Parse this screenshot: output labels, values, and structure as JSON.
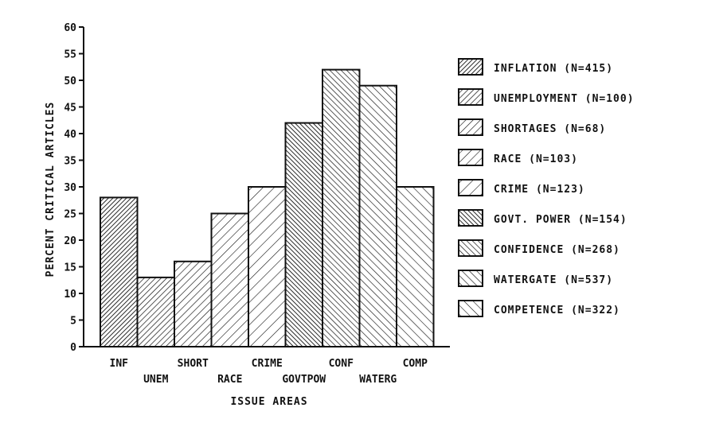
{
  "chart_data": {
    "type": "bar",
    "title": "",
    "xlabel": "ISSUE AREAS",
    "ylabel": "PERCENT CRITICAL ARTICLES",
    "ylim": [
      0,
      60
    ],
    "yticks": [
      0,
      5,
      10,
      15,
      20,
      25,
      30,
      35,
      40,
      45,
      50,
      55,
      60
    ],
    "grid": false,
    "legend_position": "right",
    "categories": [
      "INF",
      "UNEM",
      "SHORT",
      "RACE",
      "CRIME",
      "GOVTPOW",
      "CONF",
      "WATERG",
      "COMP"
    ],
    "values": [
      28,
      13,
      16,
      25,
      30,
      42,
      52,
      49,
      30
    ],
    "legend": [
      {
        "label": "INFLATION (N=415)",
        "pattern": "dense-up"
      },
      {
        "label": "UNEMPLOYMENT (N=100)",
        "pattern": "medium-up"
      },
      {
        "label": "SHORTAGES (N=68)",
        "pattern": "sparse-up"
      },
      {
        "label": "RACE (N=103)",
        "pattern": "wide-up"
      },
      {
        "label": "CRIME (N=123)",
        "pattern": "widest-up"
      },
      {
        "label": "GOVT. POWER (N=154)",
        "pattern": "dense-down"
      },
      {
        "label": "CONFIDENCE (N=268)",
        "pattern": "medium-down"
      },
      {
        "label": "WATERGATE (N=537)",
        "pattern": "sparse-down"
      },
      {
        "label": "COMPETENCE (N=322)",
        "pattern": "wide-down"
      }
    ],
    "colors": {
      "ink": "#111111",
      "background": "#ffffff"
    }
  }
}
